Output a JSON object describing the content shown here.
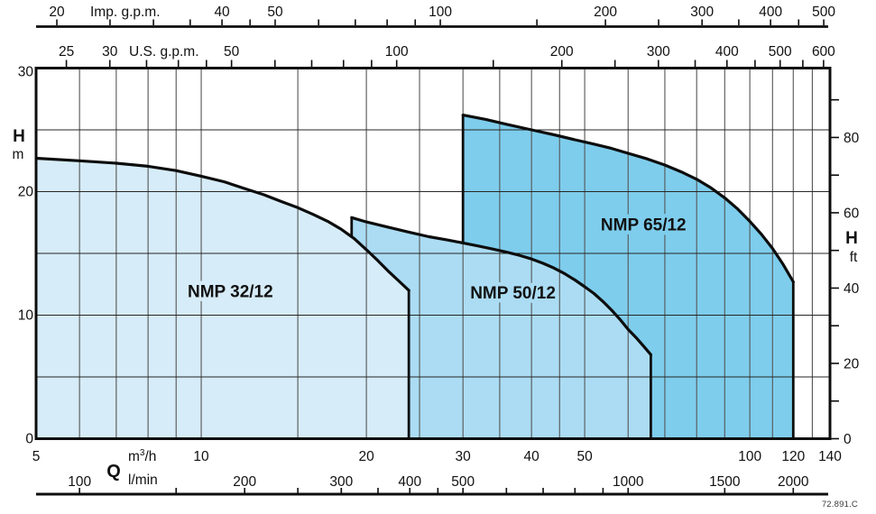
{
  "doc_code": "72.891.C",
  "colors": {
    "background": "#ffffff",
    "stroke": "#0d0d0d",
    "grid_v": "#555555",
    "grid_h": "#262626",
    "text": "#111111",
    "fill_nmp_32_12": "#d6ecf8",
    "fill_nmp_50_12": "#abdcf3",
    "fill_nmp_65_12": "#7ecdec"
  },
  "chart_data": {
    "type": "area",
    "x_scale": "log",
    "q_min": 5,
    "q_max": 140,
    "h_max": 30,
    "grid": {
      "v_m3h": [
        6,
        7,
        8,
        9,
        10,
        15,
        20,
        25,
        30,
        35,
        40,
        45,
        50,
        60,
        70,
        80,
        90,
        100,
        110,
        120,
        130
      ],
      "h_m": [
        5,
        10,
        15,
        20,
        25
      ]
    },
    "axes": {
      "imp_gpm": {
        "title": "Imp. g.p.m.",
        "labeled": [
          20,
          40,
          50,
          100,
          200,
          300,
          400,
          500
        ],
        "minor": [
          25,
          30,
          35,
          45,
          60,
          70,
          80,
          90,
          150,
          250,
          350,
          450
        ],
        "factor_to_m3h": 0.272765
      },
      "us_gpm": {
        "title": "U.S. g.p.m.",
        "labeled": [
          25,
          30,
          50,
          100,
          200,
          300,
          400,
          500,
          600
        ],
        "minor": [
          35,
          40,
          45,
          60,
          70,
          80,
          90,
          150,
          250,
          350,
          450,
          550
        ],
        "factor_to_m3h": 0.227125
      },
      "q_m3h": {
        "q_label": "Q",
        "unit": {
          "pre": "m",
          "sup": "3",
          "post": "/h"
        },
        "labeled": [
          5,
          10,
          20,
          30,
          40,
          50,
          100,
          120,
          140
        ]
      },
      "l_min": {
        "unit": "l/min",
        "labeled": [
          100,
          200,
          300,
          400,
          500,
          1000,
          1500,
          2000
        ],
        "minor": [
          150,
          250,
          300,
          350,
          450,
          600,
          700,
          800,
          900
        ],
        "factor_to_m3h": 0.06
      },
      "h_m": {
        "title": "H",
        "unit": "m",
        "labeled": [
          0,
          10,
          20,
          30
        ]
      },
      "h_ft": {
        "title": "H",
        "unit": "ft",
        "labeled": [
          0,
          20,
          40,
          60,
          80
        ],
        "ticks": [
          0,
          10,
          20,
          30,
          40,
          50,
          60,
          70,
          80,
          90
        ],
        "factor_to_m": 0.3048
      }
    },
    "series": [
      {
        "id": "nmp-32-12",
        "label": "NMP 32/12",
        "color_key": "fill_nmp_32_12",
        "label_at_qh": [
          11.3,
          11.9
        ],
        "left_edge_visible_to_h": null,
        "curve_qh": [
          [
            5,
            22.7
          ],
          [
            6,
            22.5
          ],
          [
            7,
            22.3
          ],
          [
            8,
            22.05
          ],
          [
            9,
            21.7
          ],
          [
            10,
            21.25
          ],
          [
            11,
            20.8
          ],
          [
            12,
            20.25
          ],
          [
            13,
            19.75
          ],
          [
            14,
            19.2
          ],
          [
            15,
            18.7
          ],
          [
            16,
            18.15
          ],
          [
            17,
            17.6
          ],
          [
            18,
            16.95
          ],
          [
            19,
            16.2
          ],
          [
            20,
            15.3
          ],
          [
            21,
            14.4
          ],
          [
            22,
            13.5
          ],
          [
            23,
            12.7
          ],
          [
            23.9,
            12.0
          ]
        ]
      },
      {
        "id": "nmp-50-12",
        "label": "NMP 50/12",
        "color_key": "fill_nmp_50_12",
        "label_at_qh": [
          37,
          11.8
        ],
        "left_edge_visible_to_h": 16.4,
        "curve_qh": [
          [
            18.8,
            17.9
          ],
          [
            20,
            17.55
          ],
          [
            22,
            17.1
          ],
          [
            24,
            16.7
          ],
          [
            26,
            16.35
          ],
          [
            28,
            16.1
          ],
          [
            30,
            15.85
          ],
          [
            32,
            15.6
          ],
          [
            34,
            15.35
          ],
          [
            36,
            15.1
          ],
          [
            38,
            14.85
          ],
          [
            40,
            14.55
          ],
          [
            42,
            14.2
          ],
          [
            44,
            13.8
          ],
          [
            46,
            13.35
          ],
          [
            48,
            12.85
          ],
          [
            50,
            12.3
          ],
          [
            52,
            11.75
          ],
          [
            54,
            11.1
          ],
          [
            56,
            10.4
          ],
          [
            58,
            9.65
          ],
          [
            60,
            8.85
          ],
          [
            62,
            8.2
          ],
          [
            64,
            7.5
          ],
          [
            66,
            6.8
          ]
        ]
      },
      {
        "id": "nmp-65-12",
        "label": "NMP 65/12",
        "color_key": "fill_nmp_65_12",
        "label_at_qh": [
          64,
          17.3
        ],
        "left_edge_visible_to_h": 15.85,
        "curve_qh": [
          [
            30,
            26.2
          ],
          [
            33,
            25.85
          ],
          [
            36,
            25.45
          ],
          [
            40,
            25.0
          ],
          [
            44,
            24.6
          ],
          [
            48,
            24.2
          ],
          [
            52,
            23.85
          ],
          [
            56,
            23.5
          ],
          [
            60,
            23.1
          ],
          [
            65,
            22.65
          ],
          [
            70,
            22.15
          ],
          [
            75,
            21.6
          ],
          [
            80,
            21.0
          ],
          [
            85,
            20.3
          ],
          [
            90,
            19.5
          ],
          [
            95,
            18.6
          ],
          [
            100,
            17.6
          ],
          [
            105,
            16.55
          ],
          [
            110,
            15.4
          ],
          [
            115,
            14.1
          ],
          [
            120,
            12.7
          ]
        ]
      }
    ]
  }
}
